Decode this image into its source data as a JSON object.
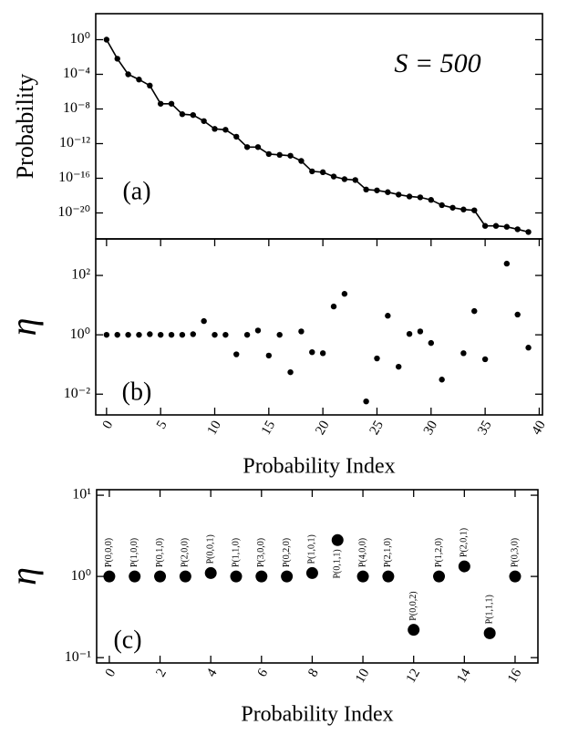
{
  "chart_data": [
    {
      "type": "line",
      "ylabel": "Probability",
      "annotation": "S = 500",
      "panel": "(a)",
      "yscale": "log",
      "color": "#000000",
      "x": [
        0,
        1,
        2,
        3,
        4,
        5,
        6,
        7,
        8,
        9,
        10,
        11,
        12,
        13,
        14,
        15,
        16,
        17,
        18,
        19,
        20,
        21,
        22,
        23,
        24,
        25,
        26,
        27,
        28,
        29,
        30,
        31,
        32,
        33,
        34,
        35,
        36,
        37,
        38,
        39
      ],
      "values": [
        1,
        0.0063,
        0.0001,
        2.5e-05,
        5e-06,
        4e-08,
        4e-08,
        2.5e-09,
        2e-09,
        4e-10,
        5e-11,
        4e-11,
        6.3e-12,
        4e-13,
        4e-13,
        6.3e-14,
        5e-14,
        4e-14,
        1e-14,
        6.3e-16,
        5e-16,
        1.6e-16,
        7.9e-17,
        6.3e-17,
        5e-18,
        4e-18,
        2.5e-18,
        1.3e-18,
        7.9e-19,
        6.3e-19,
        3.2e-19,
        7.9e-20,
        4e-20,
        2.5e-20,
        2e-20,
        3.2e-22,
        3.2e-22,
        2.5e-22,
        1.3e-22,
        6.3e-23
      ],
      "xlim": [
        -1,
        40.3
      ],
      "ylim": [
        1e-23,
        1000
      ],
      "yticks": [
        {
          "value": 1,
          "label": "10⁰"
        },
        {
          "value": 0.0001,
          "label": "10⁻⁴"
        },
        {
          "value": 1e-08,
          "label": "10⁻⁸"
        },
        {
          "value": 1e-12,
          "label": "10⁻¹²"
        },
        {
          "value": 1e-16,
          "label": "10⁻¹⁶"
        },
        {
          "value": 1e-20,
          "label": "10⁻²⁰"
        }
      ]
    },
    {
      "type": "scatter",
      "ylabel": "η",
      "xlabel": "Probability Index",
      "panel": "(b)",
      "yscale": "log",
      "color": "#000000",
      "x": [
        0,
        1,
        2,
        3,
        4,
        5,
        6,
        7,
        8,
        9,
        10,
        11,
        12,
        13,
        14,
        15,
        16,
        17,
        18,
        19,
        20,
        21,
        22,
        23,
        24,
        25,
        26,
        27,
        28,
        29,
        30,
        31,
        32,
        33,
        34,
        35,
        36,
        37,
        38,
        39
      ],
      "values": [
        1,
        1,
        1,
        1,
        1.05,
        1,
        1,
        1,
        1.05,
        2.9,
        1,
        1,
        0.22,
        1,
        1.4,
        0.2,
        1,
        0.055,
        1.3,
        0.26,
        0.24,
        9,
        24,
        null,
        0.0057,
        0.16,
        4.4,
        0.084,
        1.07,
        1.3,
        0.53,
        0.031,
        null,
        0.24,
        6.3,
        0.15,
        null,
        250,
        4.8,
        0.37
      ],
      "xlim": [
        -1,
        40.3
      ],
      "ylim": [
        0.002,
        1700
      ],
      "xticks": [
        0,
        5,
        10,
        15,
        20,
        25,
        30,
        35,
        40
      ],
      "yticks": [
        {
          "value": 100,
          "label": "10²"
        },
        {
          "value": 1,
          "label": "10⁰"
        },
        {
          "value": 0.01,
          "label": "10⁻²"
        }
      ]
    },
    {
      "type": "scatter",
      "ylabel": "η",
      "xlabel": "Probability Index",
      "panel": "(c)",
      "yscale": "log",
      "color": "#000000",
      "x": [
        0,
        1,
        2,
        3,
        4,
        5,
        6,
        7,
        8,
        9,
        10,
        11,
        12,
        13,
        14,
        15,
        16
      ],
      "values": [
        1,
        1,
        1,
        1,
        1.1,
        1,
        1,
        1,
        1.1,
        2.8,
        1,
        1,
        0.22,
        1,
        1.33,
        0.2,
        1
      ],
      "point_labels": [
        "P(0,0,0)",
        "P(1,0,0)",
        "P(0,1,0)",
        "P(2,0,0)",
        "P(0,0,1)",
        "P(1,1,0)",
        "P(3,0,0)",
        "P(0,2,0)",
        "P(1,0,1)",
        "P(0,1,1)",
        "P(4,0,0)",
        "P(2,1,0)",
        "P(0,0,2)",
        "P(1,2,0)",
        "P(2,0,1)",
        "P(1,1,1)",
        "P(0,3,0)"
      ],
      "xlim": [
        -0.5,
        16.9
      ],
      "ylim": [
        0.086,
        11.7
      ],
      "xticks": [
        0,
        2,
        4,
        6,
        8,
        10,
        12,
        14,
        16
      ],
      "yticks": [
        {
          "value": 10,
          "label": "10¹"
        },
        {
          "value": 1,
          "label": "10⁰"
        },
        {
          "value": 0.1,
          "label": "10⁻¹"
        }
      ]
    }
  ]
}
